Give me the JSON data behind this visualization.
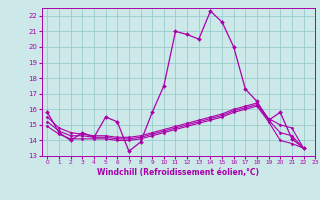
{
  "title": "",
  "xlabel": "Windchill (Refroidissement éolien,°C)",
  "xlim": [
    -0.5,
    23
  ],
  "ylim": [
    13,
    22.5
  ],
  "yticks": [
    13,
    14,
    15,
    16,
    17,
    18,
    19,
    20,
    21,
    22
  ],
  "xticks": [
    0,
    1,
    2,
    3,
    4,
    5,
    6,
    7,
    8,
    9,
    10,
    11,
    12,
    13,
    14,
    15,
    16,
    17,
    18,
    19,
    20,
    21,
    22,
    23
  ],
  "background_color": "#cce8e8",
  "grid_color": "#99cccc",
  "line_color": "#aa00aa",
  "x_hours": [
    0,
    1,
    2,
    3,
    4,
    5,
    6,
    7,
    8,
    9,
    10,
    11,
    12,
    13,
    14,
    15,
    16,
    17,
    18,
    19,
    20,
    21,
    22
  ],
  "main_series": [
    15.8,
    14.5,
    14.0,
    14.5,
    14.2,
    15.5,
    15.2,
    13.3,
    13.9,
    15.8,
    17.5,
    21.0,
    20.8,
    20.5,
    22.3,
    21.6,
    20.0,
    17.3,
    16.5,
    15.3,
    15.8,
    14.1,
    13.5
  ],
  "trend1": [
    15.5,
    14.8,
    14.5,
    14.4,
    14.3,
    14.3,
    14.2,
    14.2,
    14.3,
    14.5,
    14.7,
    14.9,
    15.1,
    15.3,
    15.5,
    15.7,
    16.0,
    16.2,
    16.4,
    15.4,
    15.0,
    14.8,
    13.5
  ],
  "trend2": [
    15.2,
    14.6,
    14.3,
    14.3,
    14.2,
    14.2,
    14.1,
    14.1,
    14.2,
    14.4,
    14.6,
    14.8,
    15.0,
    15.2,
    15.4,
    15.6,
    15.9,
    16.1,
    16.3,
    15.3,
    14.5,
    14.3,
    13.5
  ],
  "trend3": [
    14.9,
    14.4,
    14.1,
    14.1,
    14.1,
    14.1,
    14.0,
    14.0,
    14.1,
    14.3,
    14.5,
    14.7,
    14.9,
    15.1,
    15.3,
    15.5,
    15.8,
    16.0,
    16.2,
    15.2,
    14.0,
    13.8,
    13.5
  ]
}
